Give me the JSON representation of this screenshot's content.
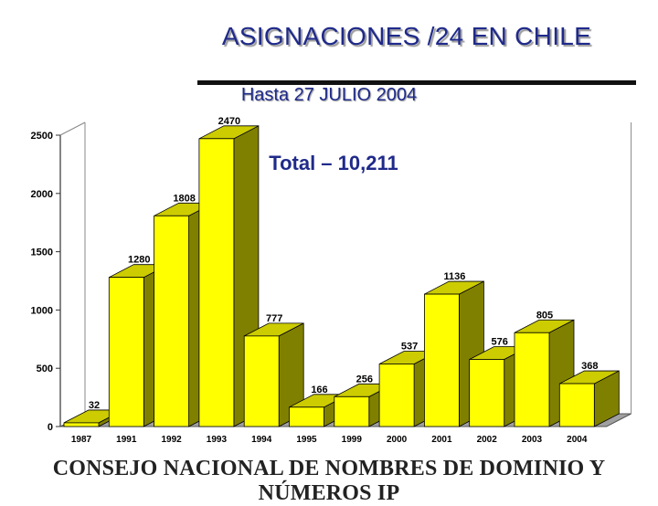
{
  "title": "ASIGNACIONES /24 EN CHILE",
  "subtitle": "Hasta 27 JULIO 2004",
  "footer": "CONSEJO NACIONAL DE NOMBRES DE DOMINIO Y NÚMEROS IP",
  "chart_data": {
    "type": "bar",
    "categories": [
      "1987",
      "1991",
      "1992",
      "1993",
      "1994",
      "1995",
      "1999",
      "2000",
      "2001",
      "2002",
      "2003",
      "2004"
    ],
    "values": [
      32,
      1280,
      1808,
      2470,
      777,
      166,
      256,
      537,
      1136,
      576,
      805,
      368
    ],
    "value_labels": [
      "32",
      "1280",
      "1808",
      "2470",
      "777",
      "166",
      "256",
      "537",
      "1136",
      "576",
      "805",
      "368"
    ],
    "yticks": [
      "0",
      "500",
      "1000",
      "1500",
      "2000",
      "2500"
    ],
    "ylim": [
      0,
      2500
    ],
    "annotation": "Total – 10,211",
    "grid": false,
    "colors": {
      "bar_front": "#ffff00",
      "bar_top": "#cccc00",
      "bar_side": "#808000",
      "floor": "#a0a0a0"
    }
  }
}
